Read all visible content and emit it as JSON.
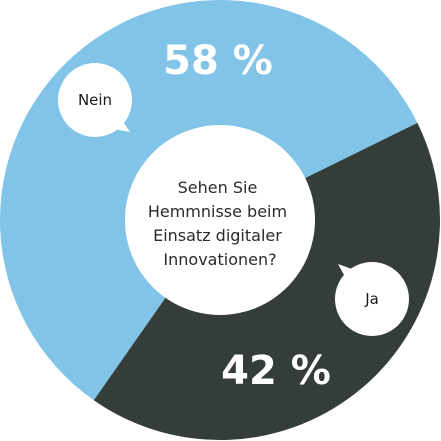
{
  "chart_data": {
    "type": "pie",
    "categories": [
      "Nein",
      "Ja"
    ],
    "values": [
      58,
      42
    ],
    "value_labels": [
      "58 %",
      "42 %"
    ],
    "center_text": [
      "Sehen Sie",
      "Hemmnisse beim",
      "Einsatz digitaler",
      "Innovationen?"
    ],
    "colors": [
      "#82c4e8",
      "#343d37"
    ],
    "donut": true,
    "legend": "speech-bubbles"
  }
}
